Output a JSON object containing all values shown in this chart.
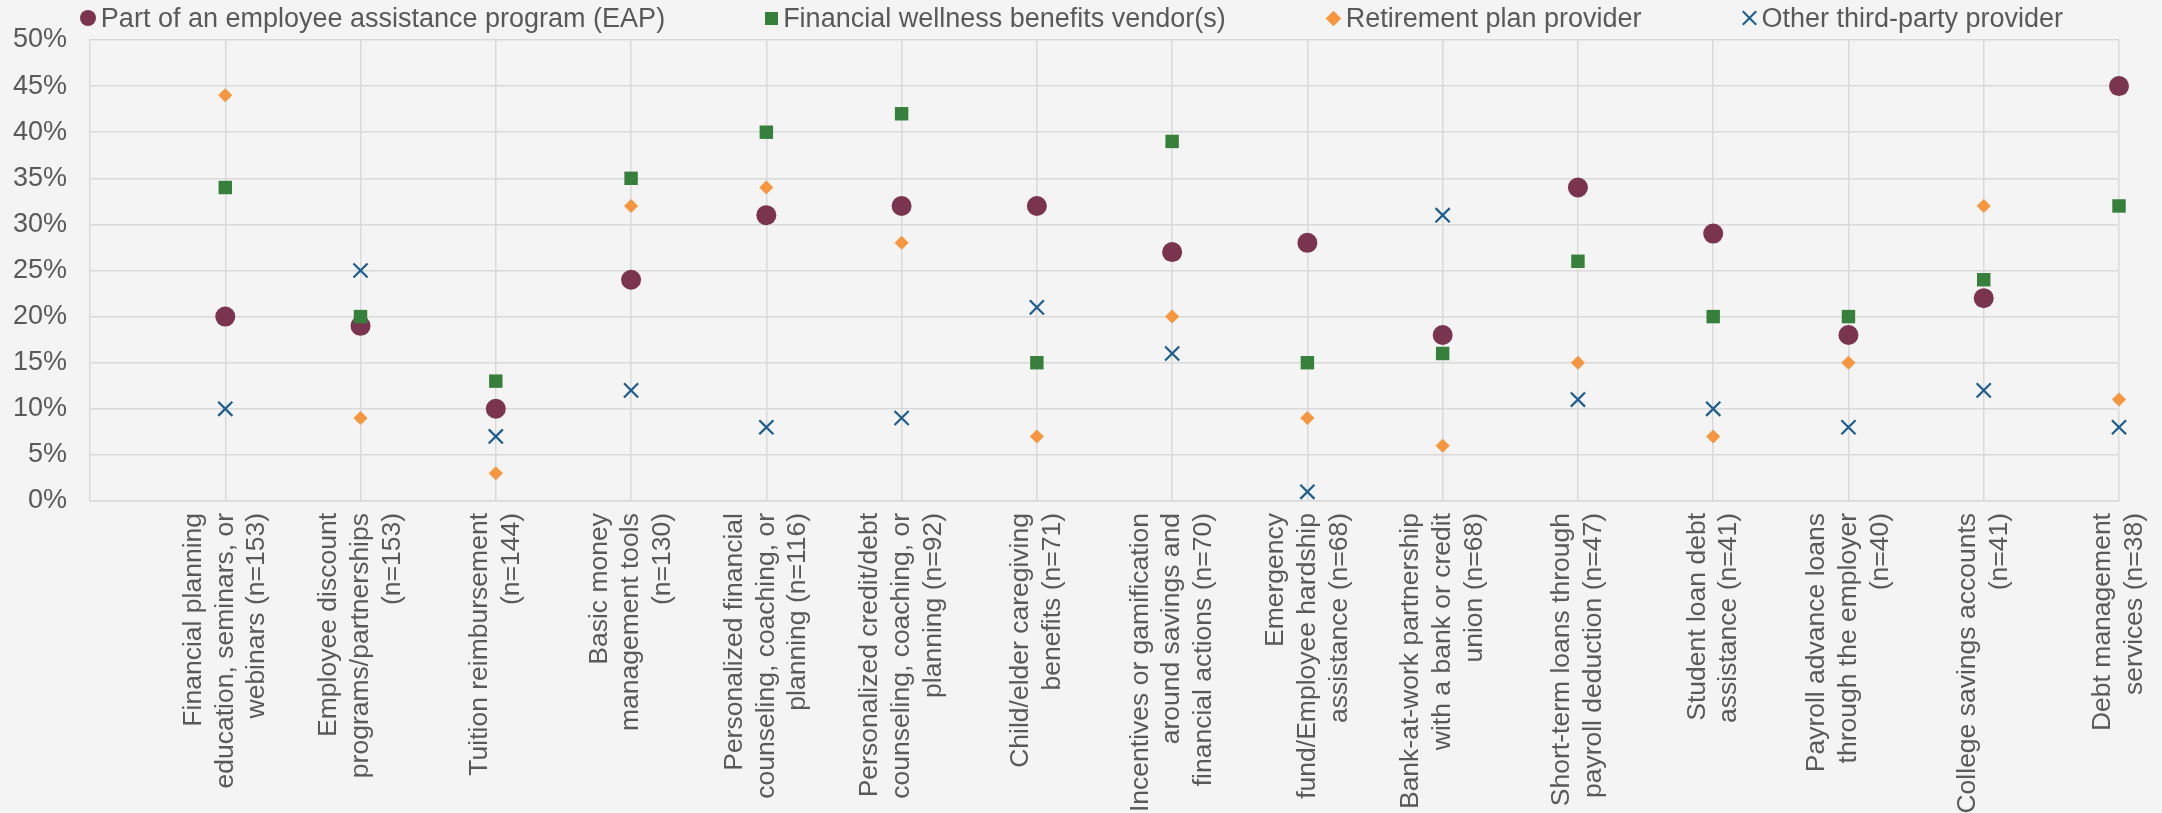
{
  "chart_data": {
    "type": "scatter",
    "categories": [
      "Financial planning education, seminars, or webinars (n=153)",
      "Employee discount programs/partnerships (n=153)",
      "Tuition reimbursement (n=144)",
      "Basic money management tools (n=130)",
      "Personalized financial counseling, coaching, or planning (n=116)",
      "Personalized credit/debt counseling, coaching, or planning (n=92)",
      "Child/elder caregiving benefits (n=71)",
      "Incentives or gamification around savings and financial actions (n=70)",
      "Emergency fund/Employee hardship assistance (n=68)",
      "Bank-at-work partnership with a bank or credit union (n=68)",
      "Short-term loans through payroll deduction (n=47)",
      "Student loan debt assistance (n=41)",
      "Payroll advance loans through the employer (n=40)",
      "College savings accounts (n=41)",
      "Debt management services (n=38)"
    ],
    "series": [
      {
        "name": "Part of an employee assistance program (EAP)",
        "color": "#7b344f",
        "marker": "circle",
        "values": [
          20,
          19,
          10,
          24,
          31,
          32,
          32,
          27,
          28,
          18,
          34,
          29,
          18,
          22,
          45
        ]
      },
      {
        "name": "Financial wellness benefits vendor(s)",
        "color": "#36803c",
        "marker": "square",
        "values": [
          34,
          20,
          13,
          35,
          40,
          42,
          15,
          39,
          15,
          16,
          26,
          20,
          20,
          24,
          32
        ]
      },
      {
        "name": "Retirement plan provider",
        "color": "#f7963f",
        "marker": "diamond",
        "values": [
          44,
          9,
          3,
          32,
          34,
          28,
          7,
          20,
          9,
          6,
          15,
          7,
          15,
          32,
          11
        ]
      },
      {
        "name": "Other third-party provider",
        "color": "#1b5d8f",
        "marker": "cross",
        "values": [
          10,
          25,
          7,
          12,
          8,
          9,
          21,
          16,
          1,
          31,
          11,
          10,
          8,
          12,
          8
        ]
      }
    ],
    "ylim": [
      0,
      50
    ],
    "yticks": [
      {
        "value": 0,
        "label": "0%"
      },
      {
        "value": 5,
        "label": "5%"
      },
      {
        "value": 10,
        "label": "10%"
      },
      {
        "value": 15,
        "label": "15%"
      },
      {
        "value": 20,
        "label": "20%"
      },
      {
        "value": 25,
        "label": "25%"
      },
      {
        "value": 30,
        "label": "30%"
      },
      {
        "value": 35,
        "label": "35%"
      },
      {
        "value": 40,
        "label": "40%"
      },
      {
        "value": 45,
        "label": "45%"
      },
      {
        "value": 50,
        "label": "50%"
      }
    ],
    "grid": true,
    "legend": "top"
  }
}
